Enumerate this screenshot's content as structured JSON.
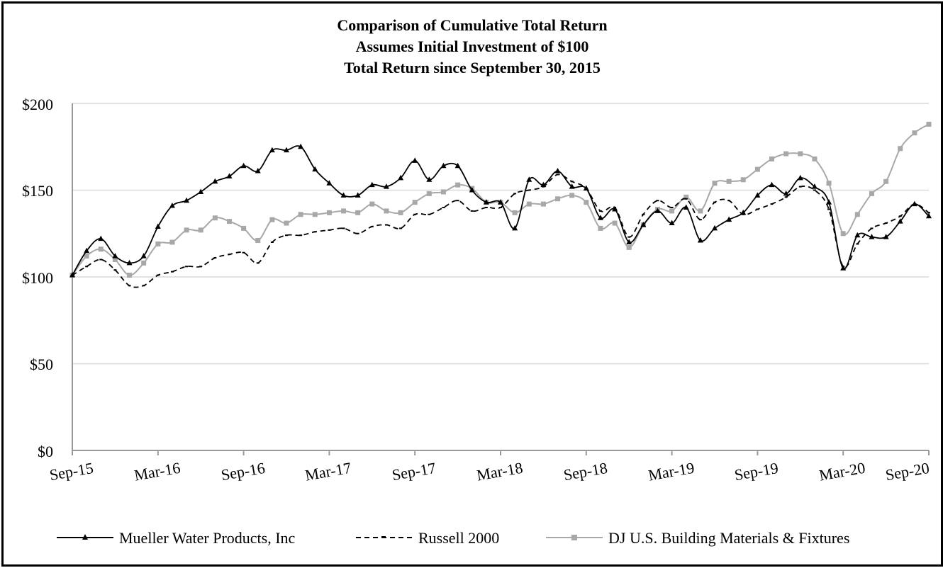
{
  "chart_data": {
    "type": "line",
    "title": [
      "Comparison of Cumulative Total Return",
      "Assumes Initial Investment of $100",
      "Total Return since September 30, 2015"
    ],
    "xlabel": "",
    "ylabel": "",
    "ylim": [
      0,
      200
    ],
    "yticks": [
      0,
      50,
      100,
      150,
      200
    ],
    "ytick_labels": [
      "$0",
      "$50",
      "$100",
      "$150",
      "$200"
    ],
    "xtick_labels": [
      "Sep-15",
      "Mar-16",
      "Sep-16",
      "Mar-17",
      "Sep-17",
      "Mar-18",
      "Sep-18",
      "Mar-19",
      "Sep-19",
      "Mar-20",
      "Sep-20"
    ],
    "x_months": 60,
    "grid": true,
    "legend": "bottom",
    "series": [
      {
        "name": "Mueller Water Products, Inc",
        "color": "#000000",
        "style": "solid",
        "marker": "triangle",
        "values": [
          101,
          115,
          122,
          112,
          108,
          112,
          129,
          141,
          144,
          149,
          155,
          158,
          164,
          161,
          173,
          173,
          175,
          162,
          154,
          147,
          147,
          153,
          152,
          157,
          167,
          156,
          164,
          164,
          150,
          143,
          143,
          128,
          156,
          153,
          161,
          152,
          151,
          134,
          139,
          120,
          130,
          138,
          131,
          140,
          121,
          128,
          133,
          137,
          147,
          153,
          148,
          157,
          152,
          143,
          105,
          124,
          123,
          123,
          132,
          142,
          135
        ]
      },
      {
        "name": "Russell 2000",
        "color": "#000000",
        "style": "dashed",
        "marker": "none",
        "values": [
          101,
          106,
          110,
          104,
          95,
          95,
          101,
          103,
          106,
          106,
          111,
          113,
          114,
          108,
          120,
          124,
          124,
          126,
          127,
          128,
          125,
          129,
          130,
          128,
          136,
          136,
          140,
          144,
          138,
          140,
          140,
          148,
          150,
          152,
          159,
          155,
          151,
          138,
          140,
          123,
          136,
          144,
          140,
          145,
          133,
          143,
          144,
          136,
          139,
          142,
          146,
          152,
          150,
          139,
          106,
          119,
          128,
          131,
          135,
          142,
          137
        ]
      },
      {
        "name": "DJ U.S. Building Materials & Fixtures",
        "color": "#a8a8a8",
        "style": "solid",
        "marker": "square",
        "values": [
          101,
          112,
          116,
          110,
          101,
          108,
          119,
          120,
          127,
          127,
          134,
          132,
          128,
          121,
          133,
          131,
          136,
          136,
          137,
          138,
          137,
          142,
          138,
          137,
          143,
          148,
          149,
          153,
          151,
          143,
          143,
          137,
          142,
          142,
          145,
          147,
          143,
          128,
          131,
          117,
          130,
          139,
          138,
          146,
          138,
          154,
          155,
          156,
          162,
          168,
          171,
          171,
          168,
          154,
          125,
          136,
          148,
          155,
          174,
          183,
          188
        ]
      }
    ]
  }
}
